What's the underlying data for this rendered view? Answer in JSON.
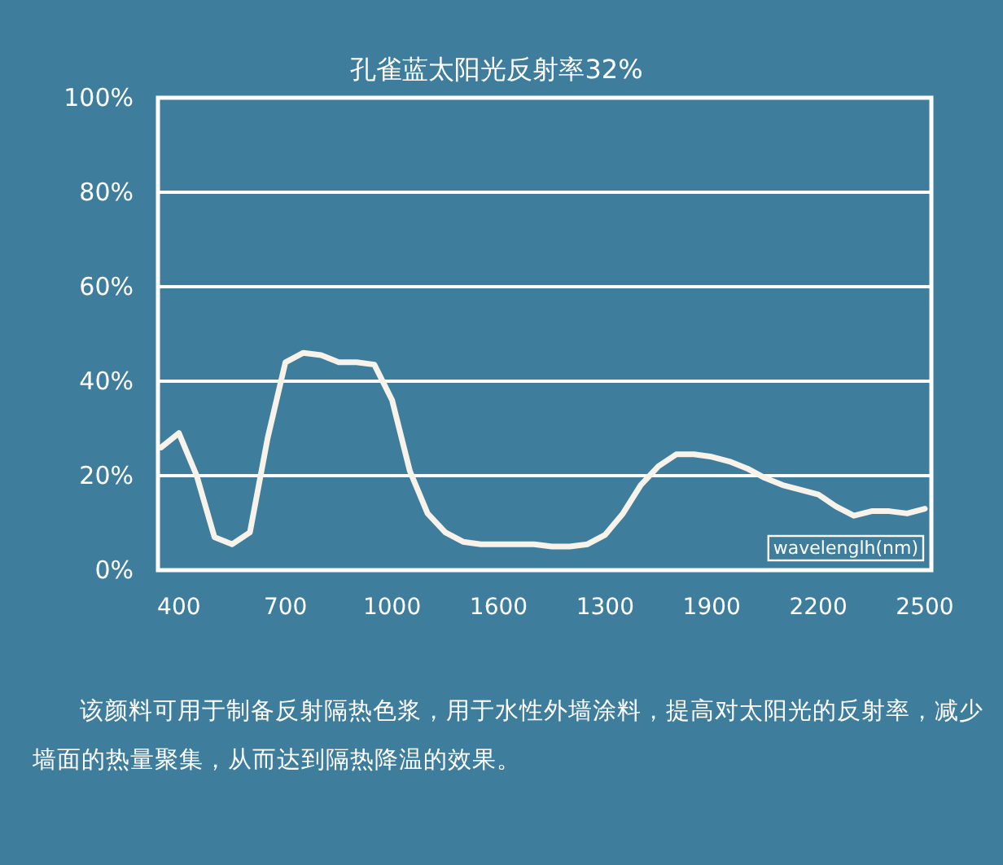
{
  "chart_data": {
    "type": "line",
    "title": "孔雀蓝太阳光反射率32%",
    "xlabel": "wavelenglh(nm)",
    "annotations": [
      "该颜料可用于制备反射隔热色浆，用于水性外墙涂料，提高对太阳光的反射率，减少墙面的热量聚集，从而达到隔热降温的效果。"
    ],
    "categories": [
      null,
      "400",
      null,
      null,
      null,
      null,
      null,
      "700",
      null,
      null,
      null,
      null,
      null,
      "1000",
      null,
      null,
      null,
      null,
      null,
      "1600",
      null,
      null,
      null,
      null,
      null,
      "1300",
      null,
      null,
      null,
      null,
      null,
      "1900",
      null,
      null,
      null,
      null,
      null,
      "2200",
      null,
      null,
      null,
      null,
      null,
      "2500"
    ],
    "series": [
      {
        "color": "#f7f3ea",
        "values": [
          26,
          29,
          20,
          7,
          5.5,
          8,
          28,
          44,
          46,
          45.5,
          44,
          44,
          43.5,
          36,
          21,
          12,
          8,
          6,
          5.5,
          5.5,
          5.5,
          5.5,
          5,
          5,
          5.5,
          7.5,
          12,
          18,
          22,
          24.5,
          24.5,
          24,
          23,
          21.5,
          19.5,
          18,
          17,
          16,
          13.5,
          11.5,
          12.5,
          12.5,
          12,
          13
        ]
      }
    ],
    "ylim": [
      0,
      100
    ],
    "yticks": [
      {
        "value": 0,
        "label": "0%"
      },
      {
        "value": 20,
        "label": "20%"
      },
      {
        "value": 40,
        "label": "40%"
      },
      {
        "value": 60,
        "label": "60%"
      },
      {
        "value": 80,
        "label": "80%"
      },
      {
        "value": 100,
        "label": "100%"
      }
    ],
    "grid": "y"
  }
}
